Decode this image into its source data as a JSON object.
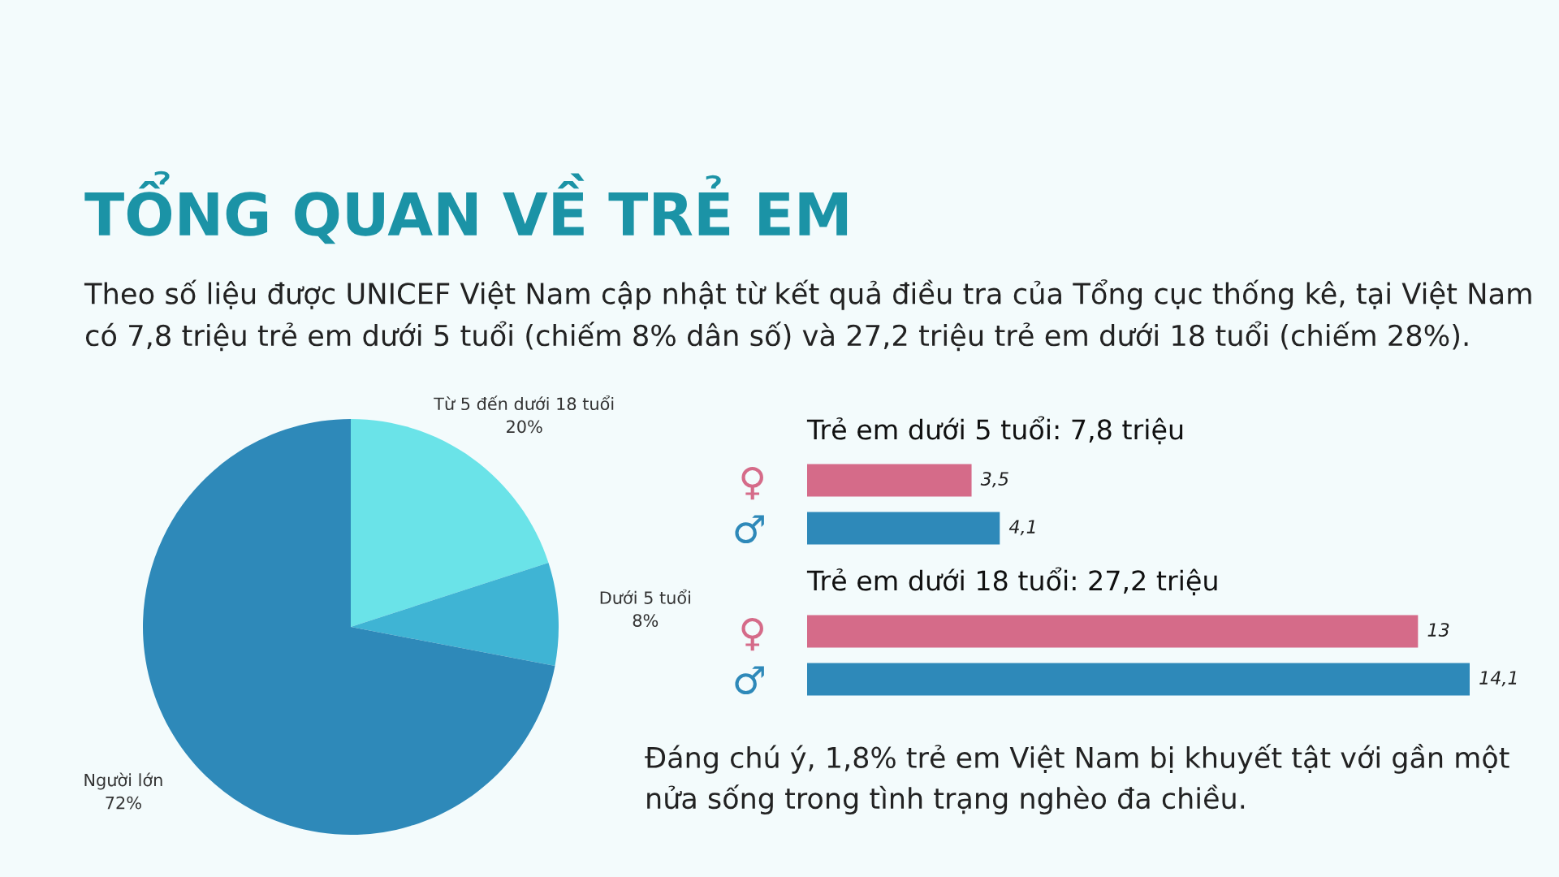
{
  "chart_data": [
    {
      "type": "other",
      "title": "TỔNG QUAN VỀ TRẺ EM",
      "subtitle": "Theo số liệu được UNICEF Việt Nam cập nhật từ kết quả điều tra của Tổng cục thống kê, tại Việt Nam có 7,8 triệu trẻ em dưới 5 tuổi (chiếm 8% dân số) và 27,2 triệu trẻ em dưới 18 tuổi (chiếm 28%)."
    },
    {
      "type": "pie",
      "categories": [
        "Từ 5 đến dưới 18 tuổi",
        "Dưới 5 tuổi",
        "Người lớn"
      ],
      "values": [
        20,
        8,
        72
      ],
      "colors": [
        "#6ae3e8",
        "#3fb4d4",
        "#2e89b9"
      ],
      "value_labels": [
        "20%",
        "8%",
        "72%"
      ]
    },
    {
      "type": "bar",
      "orientation": "horizontal",
      "title": "Trẻ em dưới 5 tuổi: 7,8 triệu",
      "categories": [
        "♀",
        "♂"
      ],
      "values": [
        3.5,
        4.1
      ],
      "colors": [
        "#d56b89",
        "#2e89b9"
      ],
      "value_labels": [
        "3,5",
        "4,1"
      ],
      "tick_labels": "y"
    },
    {
      "type": "bar",
      "orientation": "horizontal",
      "title": "Trẻ em dưới 18 tuổi: 27,2 triệu",
      "categories": [
        "♀",
        "♂"
      ],
      "values": [
        13,
        14.1
      ],
      "colors": [
        "#d56b89",
        "#2e89b9"
      ],
      "value_labels": [
        "13",
        "14,1"
      ],
      "tick_labels": "y",
      "annotations": [
        "Đáng chú ý, 1,8% trẻ em Việt Nam bị khuyết tật với gần một nửa sống trong tình trạng nghèo đa chiều."
      ]
    }
  ]
}
